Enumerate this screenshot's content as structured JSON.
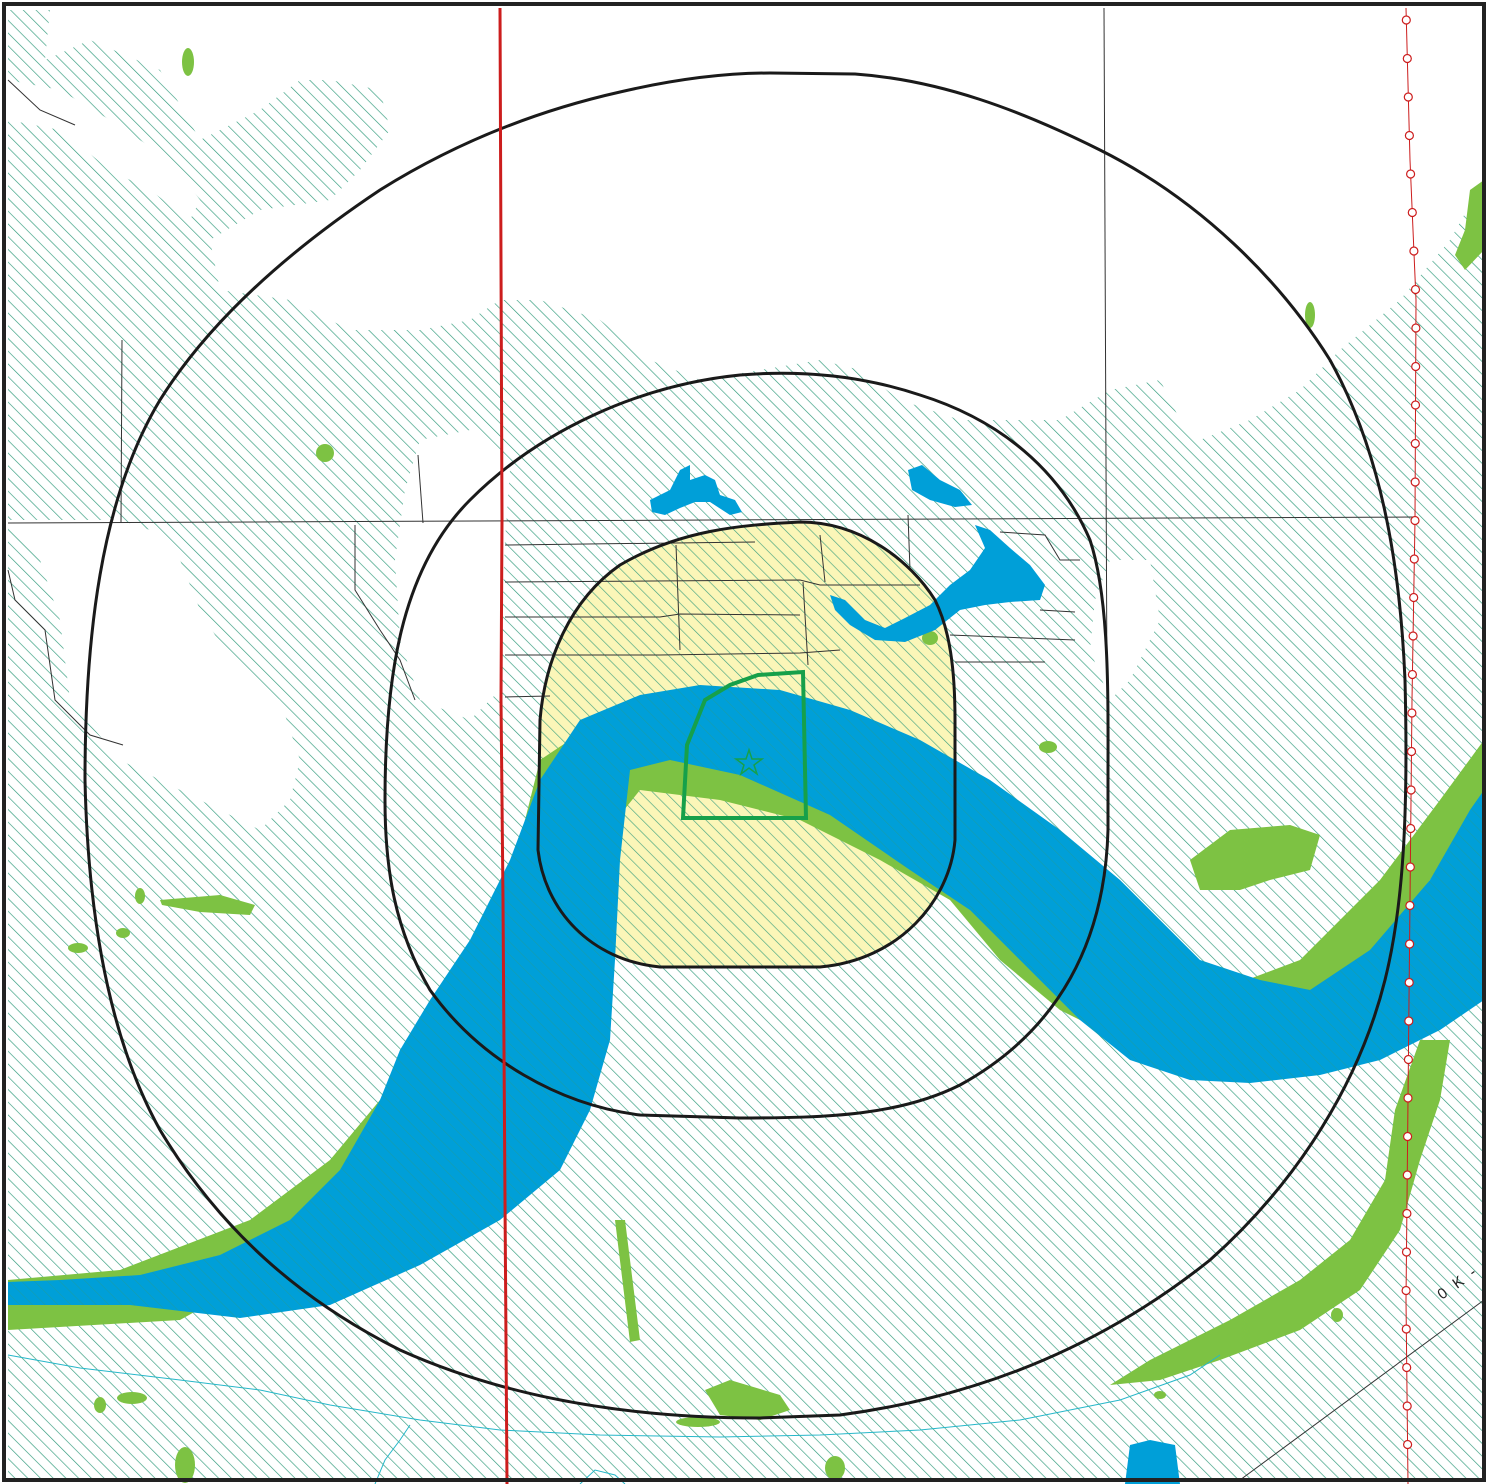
{
  "map": {
    "colors": {
      "background": "#ffffff",
      "hatch": "#2e9a7a",
      "wetland_green": "#7dc243",
      "water_blue": "#009fd8",
      "core_zone_fill": "#fbf6b8",
      "ring_outline": "#1a1a1a",
      "site_outline": "#16a04a",
      "railway_red": "#cc1d1d",
      "road_line": "#333333",
      "stream_cyan": "#26b7c9"
    },
    "icons": [
      "star-icon",
      "railway-marker-icon"
    ],
    "corner_label": "0 K -"
  }
}
